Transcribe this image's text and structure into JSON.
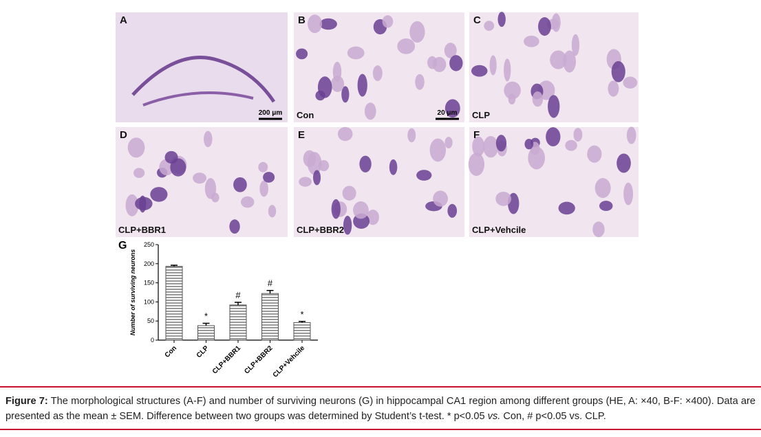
{
  "panels": [
    {
      "letter": "A",
      "scale_bar": "200 μm"
    },
    {
      "letter": "B",
      "group": "Con",
      "scale_bar": "20 μm"
    },
    {
      "letter": "C",
      "group": "CLP"
    },
    {
      "letter": "D",
      "group": "CLP+BBR1"
    },
    {
      "letter": "E",
      "group": "CLP+BBR2"
    },
    {
      "letter": "F",
      "group": "CLP+Vehcile"
    }
  ],
  "chart_data": {
    "type": "bar",
    "letter": "G",
    "ylabel": "Number of surviving neurons",
    "categories": [
      "Con",
      "CLP",
      "CLP+BBR1",
      "CLP+BBR2",
      "CLP+Vehcile"
    ],
    "values": [
      193,
      38,
      92,
      122,
      46
    ],
    "errors": [
      3,
      6,
      7,
      8,
      3
    ],
    "annotations": [
      null,
      "*",
      "#",
      "#",
      "*"
    ],
    "ylim": [
      0,
      250
    ],
    "yticks": [
      0,
      50,
      100,
      150,
      200,
      250
    ],
    "color": "#555555"
  },
  "caption": {
    "label": "Figure 7:",
    "text": "The morphological structures (A-F) and number of surviving neurons (G) in hippocampal CA1 region among different groups (HE, A: ×40, B-F: ×400). Data are presented as the mean ± SEM. Difference between two groups was determined by Student’s t-test. * p<0.05 ",
    "italic": "vs.",
    "text_end": " Con, # p<0.05 vs. CLP."
  }
}
